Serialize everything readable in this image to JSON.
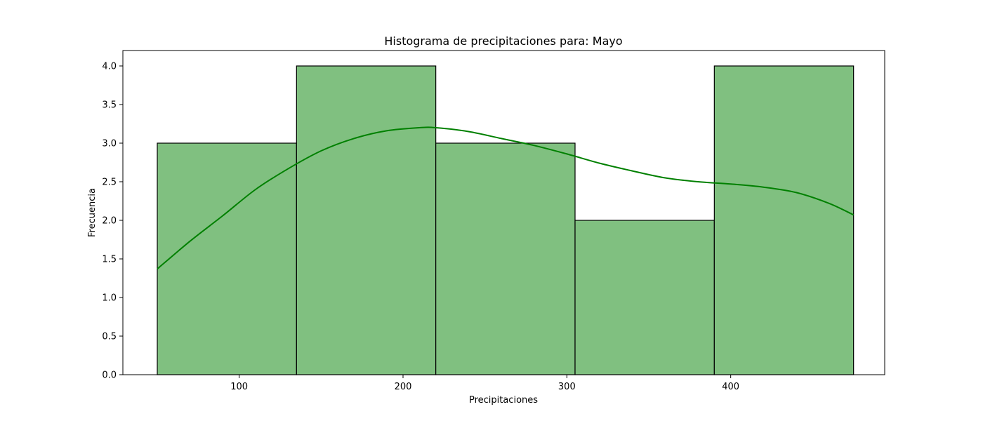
{
  "chart_data": {
    "type": "bar",
    "title": "Histograma de precipitaciones para: Mayo",
    "xlabel": "Precipitaciones",
    "ylabel": "Frecuencia",
    "bins": [
      {
        "start": 50,
        "end": 135,
        "count": 3
      },
      {
        "start": 135,
        "end": 220,
        "count": 4
      },
      {
        "start": 220,
        "end": 305,
        "count": 3
      },
      {
        "start": 305,
        "end": 390,
        "count": 2
      },
      {
        "start": 390,
        "end": 475,
        "count": 4
      }
    ],
    "kde": {
      "x": [
        50,
        70,
        90,
        110,
        130,
        150,
        170,
        190,
        210,
        220,
        240,
        260,
        280,
        300,
        320,
        340,
        360,
        380,
        400,
        420,
        440,
        460,
        475
      ],
      "y": [
        1.37,
        1.73,
        2.06,
        2.4,
        2.67,
        2.9,
        3.06,
        3.16,
        3.2,
        3.2,
        3.15,
        3.06,
        2.97,
        2.86,
        2.74,
        2.64,
        2.55,
        2.5,
        2.47,
        2.43,
        2.36,
        2.22,
        2.07
      ]
    },
    "xticks": [
      "100",
      "200",
      "300",
      "400"
    ],
    "xtick_values": [
      100,
      200,
      300,
      400
    ],
    "yticks": [
      "0.0",
      "0.5",
      "1.0",
      "1.5",
      "2.0",
      "2.5",
      "3.0",
      "3.5",
      "4.0"
    ],
    "ytick_values": [
      0,
      0.5,
      1,
      1.5,
      2,
      2.5,
      3,
      3.5,
      4
    ],
    "xlim": [
      29,
      494
    ],
    "ylim": [
      0,
      4.2
    ],
    "bar_color": "#80c080",
    "bar_edge_color": "#000000",
    "kde_color": "#008000",
    "grid": false,
    "legend": "none"
  }
}
